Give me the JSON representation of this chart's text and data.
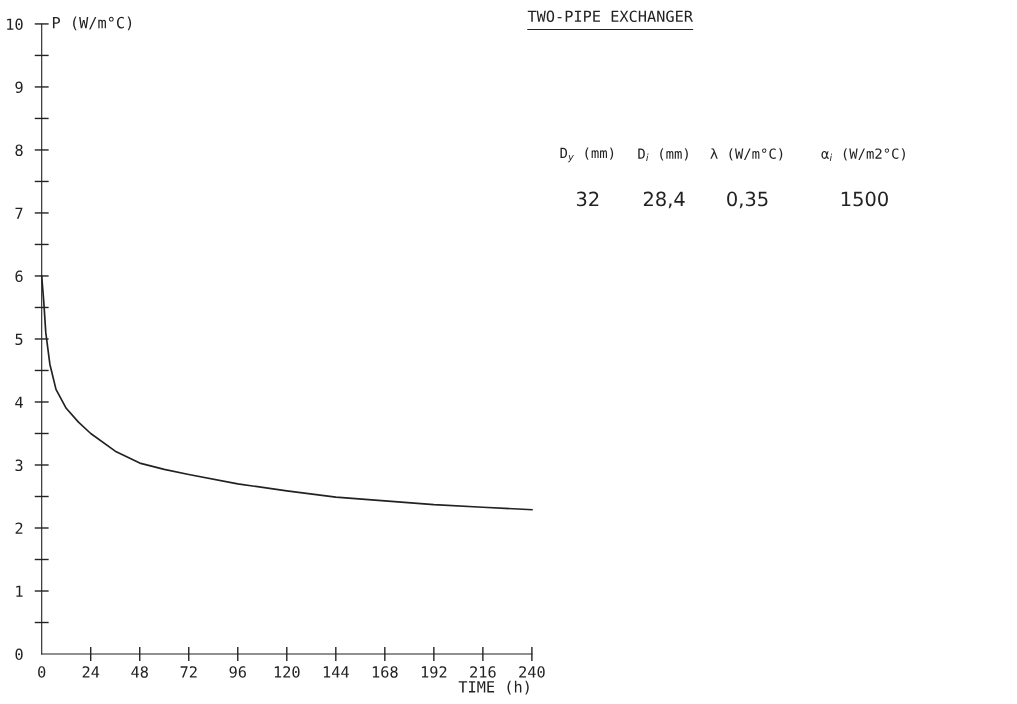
{
  "chart_data": {
    "type": "line",
    "title": "TWO-PIPE EXCHANGER",
    "xlabel": "TIME (h)",
    "ylabel": "P (W/m°C)",
    "x": [
      0,
      1,
      2,
      4,
      7,
      12,
      18,
      24,
      36,
      48,
      60,
      72,
      96,
      120,
      144,
      168,
      192,
      216,
      240
    ],
    "series": [
      {
        "color": "#222222",
        "values": [
          6.0,
          5.6,
          5.1,
          4.6,
          4.2,
          3.9,
          3.68,
          3.5,
          3.22,
          3.03,
          2.93,
          2.85,
          2.7,
          2.59,
          2.49,
          2.43,
          2.37,
          2.33,
          2.29
        ]
      }
    ],
    "xlim": [
      0,
      240
    ],
    "ylim": [
      0,
      10
    ],
    "xticks": [
      0,
      24,
      48,
      72,
      96,
      120,
      144,
      168,
      192,
      216,
      240
    ],
    "yticks": [
      0,
      1,
      2,
      3,
      4,
      5,
      6,
      7,
      8,
      9,
      10
    ],
    "annotations": [
      "D$_{y}$ (mm)",
      "D$_{i}$ (mm)",
      "λ (W/m°C)",
      "α$_{i}$ (W/m2°C)",
      "32",
      "28,4",
      "0,35",
      "1500"
    ],
    "grid": false,
    "marker": "none",
    "line_style": "solid"
  }
}
